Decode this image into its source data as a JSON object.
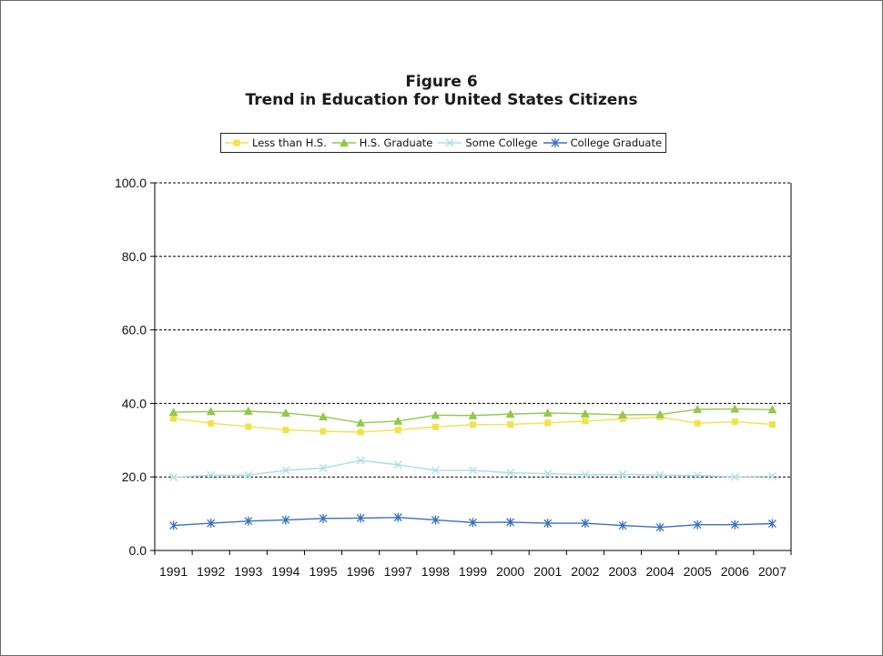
{
  "figure": {
    "label": "Figure 6",
    "title": "Trend in Education for United States Citizens"
  },
  "chart_data": {
    "type": "line",
    "title": "Trend in Education for United States Citizens",
    "xlabel": "",
    "ylabel": "",
    "ylim": [
      0,
      100
    ],
    "y_ticks": [
      "0.0",
      "20.0",
      "40.0",
      "60.0",
      "80.0",
      "100.0"
    ],
    "grid": "horizontal dashed",
    "legend_position": "top",
    "x": [
      "1991",
      "1992",
      "1993",
      "1994",
      "1995",
      "1996",
      "1997",
      "1998",
      "1999",
      "2000",
      "2001",
      "2002",
      "2003",
      "2004",
      "2005",
      "2006",
      "2007"
    ],
    "series": [
      {
        "name": "Less than H.S.",
        "color": "#f2e14a",
        "marker": "square",
        "values": [
          35.9,
          34.6,
          33.7,
          32.8,
          32.4,
          32.2,
          32.8,
          33.6,
          34.2,
          34.3,
          34.7,
          35.2,
          35.8,
          36.3,
          34.6,
          35.0,
          34.3
        ]
      },
      {
        "name": "H.S. Graduate",
        "color": "#92c84b",
        "marker": "triangle",
        "values": [
          37.6,
          37.8,
          37.9,
          37.4,
          36.4,
          34.7,
          35.2,
          36.8,
          36.7,
          37.1,
          37.4,
          37.2,
          36.9,
          37.0,
          38.4,
          38.5,
          38.3
        ]
      },
      {
        "name": "Some College",
        "color": "#a8dde8",
        "marker": "x",
        "values": [
          19.9,
          20.5,
          20.5,
          21.8,
          22.4,
          24.5,
          23.3,
          21.8,
          21.8,
          21.1,
          20.9,
          20.6,
          20.7,
          20.5,
          20.4,
          20.0,
          20.2
        ]
      },
      {
        "name": "College Graduate",
        "color": "#3a6fc2",
        "marker": "asterisk",
        "values": [
          6.8,
          7.4,
          8.0,
          8.3,
          8.7,
          8.8,
          9.0,
          8.3,
          7.6,
          7.7,
          7.4,
          7.4,
          6.8,
          6.3,
          7.0,
          7.0,
          7.3
        ]
      }
    ]
  }
}
